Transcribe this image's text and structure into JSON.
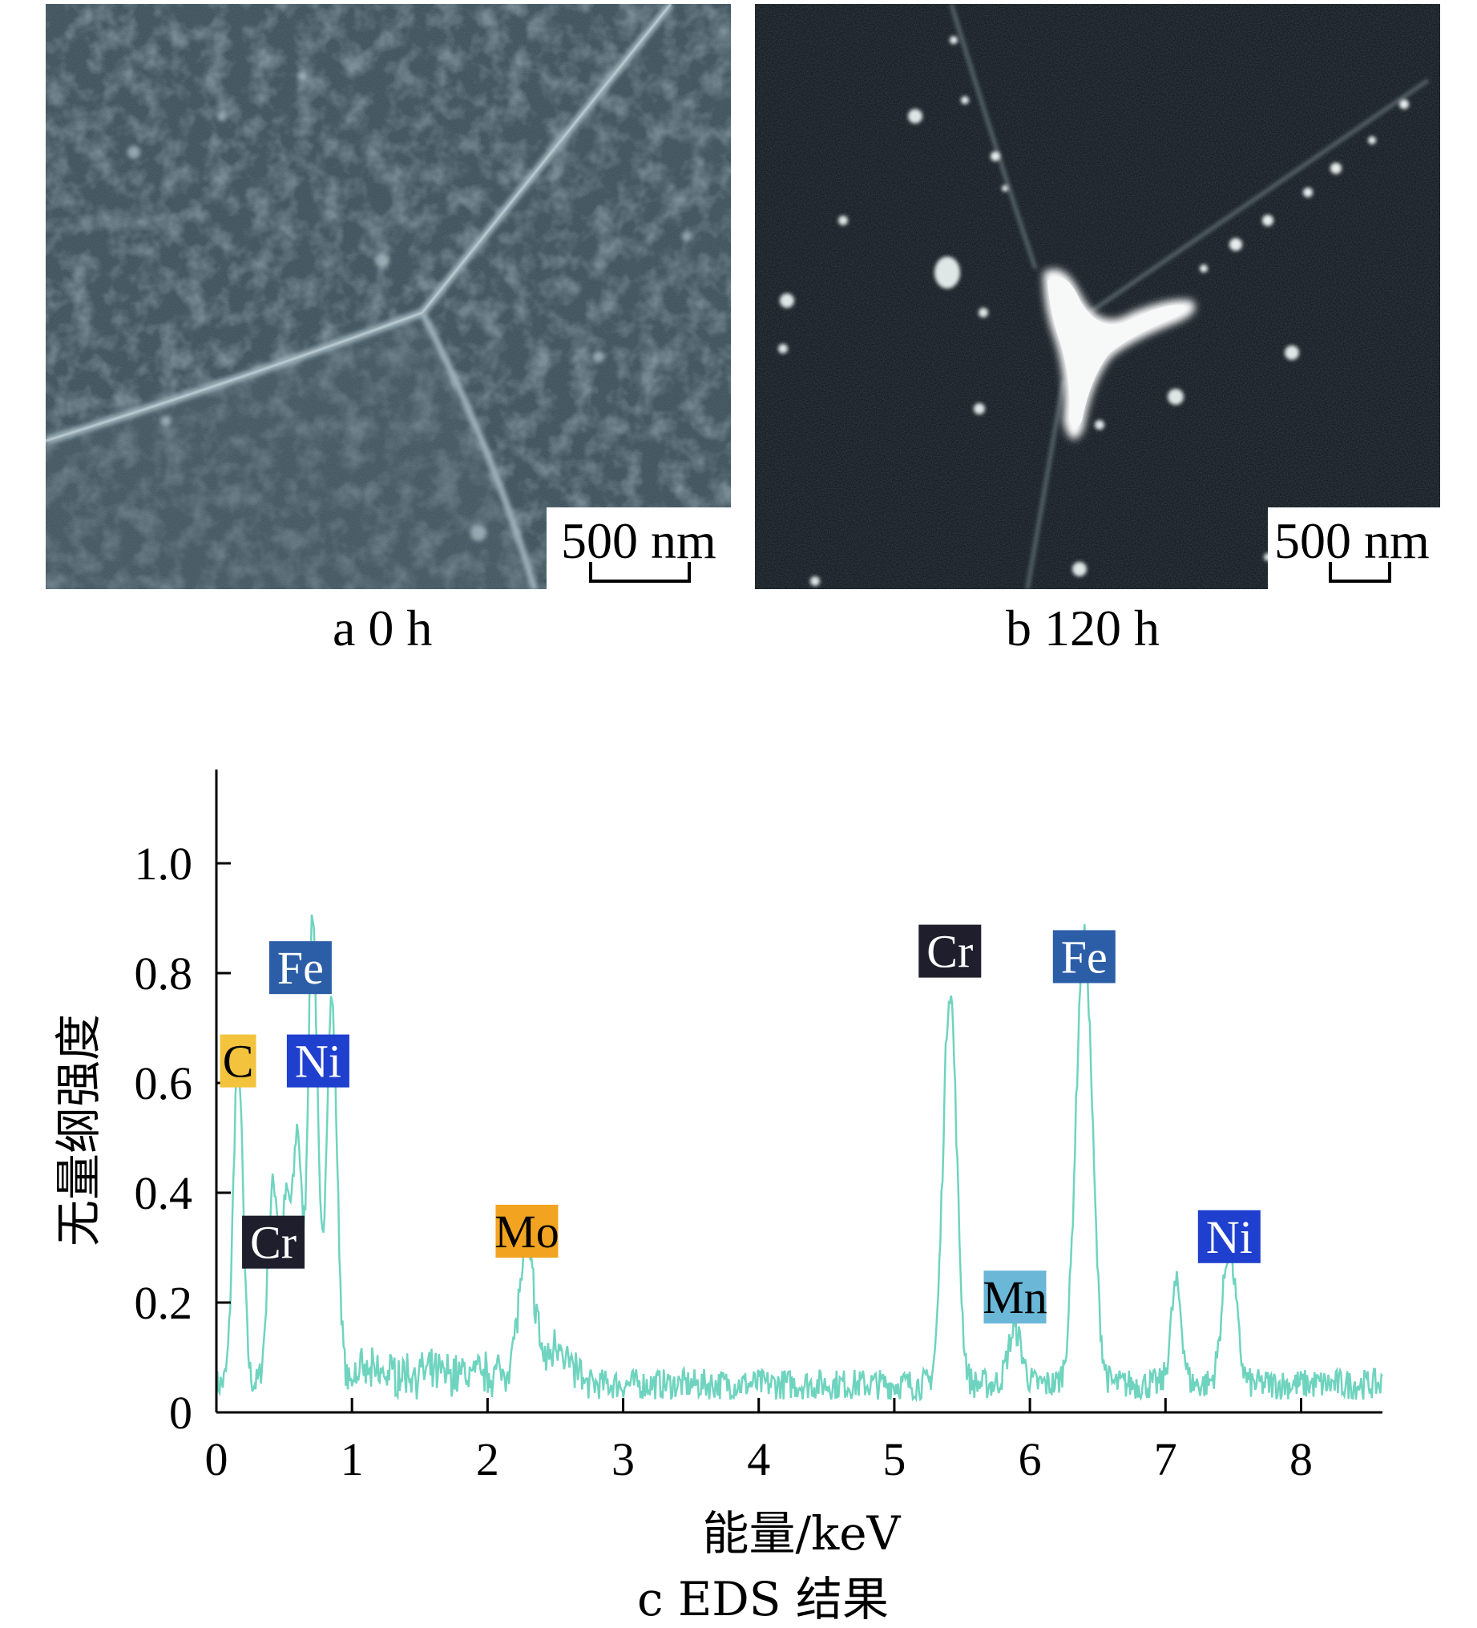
{
  "panels": [
    {
      "id": "a",
      "caption": "a  0 h",
      "scale_bar": "500 nm",
      "palette": {
        "base": "#2f4048",
        "mottle_dark": "#223038",
        "mottle_light": "#4a5e68",
        "boundary": "#8ea2aa"
      }
    },
    {
      "id": "b",
      "caption": "b  120 h",
      "scale_bar": "500 nm",
      "palette": {
        "base": "#141c22",
        "boundary": "#5c6a70",
        "precipitate": "#f4f6f6"
      }
    }
  ],
  "chart_data": {
    "type": "line",
    "caption": "c  EDS 结果",
    "xlabel": "能量/keV",
    "ylabel": "无量纲强度",
    "xlim": [
      0,
      8.6
    ],
    "ylim": [
      0,
      1.0
    ],
    "xticks": [
      0,
      1,
      2,
      3,
      4,
      5,
      6,
      7,
      8
    ],
    "yticks": [
      0,
      0.2,
      0.4,
      0.6,
      0.8,
      1.0
    ],
    "ytick_labels": [
      "0",
      "0.2",
      "0.4",
      "0.6",
      "0.8",
      "1.0"
    ],
    "line_color": "#6fd4bf",
    "peaks": [
      {
        "x": 0.16,
        "y": 0.6,
        "w": 0.035
      },
      {
        "x": 0.42,
        "y": 0.36,
        "w": 0.04
      },
      {
        "x": 0.52,
        "y": 0.32,
        "w": 0.035
      },
      {
        "x": 0.6,
        "y": 0.44,
        "w": 0.03
      },
      {
        "x": 0.71,
        "y": 0.86,
        "w": 0.035
      },
      {
        "x": 0.85,
        "y": 0.7,
        "w": 0.04
      },
      {
        "x": 2.29,
        "y": 0.22,
        "w": 0.06
      },
      {
        "x": 2.52,
        "y": 0.06,
        "w": 0.05
      },
      {
        "x": 5.41,
        "y": 0.72,
        "w": 0.05
      },
      {
        "x": 5.89,
        "y": 0.1,
        "w": 0.05
      },
      {
        "x": 6.4,
        "y": 0.82,
        "w": 0.06
      },
      {
        "x": 7.08,
        "y": 0.18,
        "w": 0.04
      },
      {
        "x": 7.47,
        "y": 0.25,
        "w": 0.05
      }
    ],
    "baseline": 0.04,
    "noise": 0.035,
    "peak_labels": [
      {
        "text": "C",
        "x": 0.16,
        "y": 0.64,
        "bg": "#f3c33e",
        "fg": "#000000"
      },
      {
        "text": "Fe",
        "x": 0.62,
        "y": 0.81,
        "bg": "#2c5ea8",
        "fg": "#ffffff"
      },
      {
        "text": "Ni",
        "x": 0.75,
        "y": 0.64,
        "bg": "#1f3fcf",
        "fg": "#ffffff"
      },
      {
        "text": "Cr",
        "x": 0.42,
        "y": 0.31,
        "bg": "#1e1e2c",
        "fg": "#ffffff"
      },
      {
        "text": "Mo",
        "x": 2.29,
        "y": 0.33,
        "bg": "#f2a31f",
        "fg": "#000000"
      },
      {
        "text": "Cr",
        "x": 5.41,
        "y": 0.84,
        "bg": "#1e1e2c",
        "fg": "#ffffff"
      },
      {
        "text": "Fe",
        "x": 6.4,
        "y": 0.83,
        "bg": "#2c5ea8",
        "fg": "#ffffff"
      },
      {
        "text": "Mn",
        "x": 5.89,
        "y": 0.21,
        "bg": "#6ab7d8",
        "fg": "#000000"
      },
      {
        "text": "Ni",
        "x": 7.47,
        "y": 0.32,
        "bg": "#1f3fcf",
        "fg": "#ffffff"
      }
    ]
  }
}
